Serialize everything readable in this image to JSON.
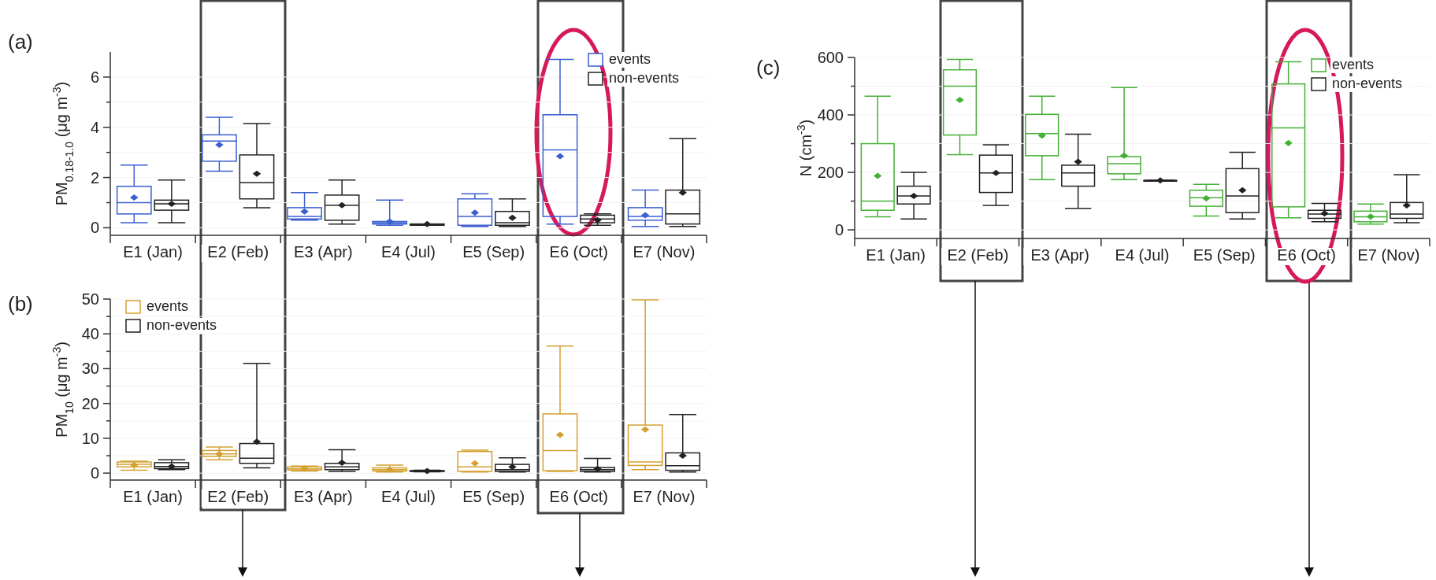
{
  "chart_data": [
    {
      "type": "box",
      "title": "(a)",
      "ylabel": "PM$_{0.18-1.0}$ (μg m$^{-3}$)",
      "categories": [
        "E1 (Jan)",
        "E2 (Feb)",
        "E3 (Apr)",
        "E4 (Jul)",
        "E5 (Sep)",
        "E6 (Oct)",
        "E7 (Nov)"
      ],
      "ylim": [
        -0.3,
        7
      ],
      "yticks": [
        0,
        {
          "value": 1,
          "label": null
        },
        2,
        {
          "value": 3,
          "label": null
        },
        4,
        {
          "value": 5,
          "label": null
        },
        6
      ],
      "grid": "y",
      "legend": "top right",
      "marker": "diamond",
      "series": [
        {
          "name": "events",
          "color": "#3a5fd0",
          "boxes": [
            {
              "low": 0.2,
              "q1": 0.55,
              "median": 1.0,
              "q3": 1.65,
              "high": 2.5,
              "mean": 1.2
            },
            {
              "low": 2.25,
              "q1": 2.65,
              "median": 3.45,
              "q3": 3.7,
              "high": 4.4,
              "mean": 3.3
            },
            {
              "low": 0.3,
              "q1": 0.35,
              "median": 0.45,
              "q3": 0.8,
              "high": 1.4,
              "mean": 0.65
            },
            {
              "low": 0.1,
              "q1": 0.15,
              "median": 0.2,
              "q3": 0.25,
              "high": 1.1,
              "mean": 0.25
            },
            {
              "low": 0.05,
              "q1": 0.1,
              "median": 0.45,
              "q3": 1.15,
              "high": 1.35,
              "mean": 0.6
            },
            {
              "low": 0.15,
              "q1": 0.45,
              "median": 3.1,
              "q3": 4.5,
              "high": 6.7,
              "mean": 2.85
            },
            {
              "low": 0.05,
              "q1": 0.3,
              "median": 0.45,
              "q3": 0.8,
              "high": 1.5,
              "mean": 0.5
            }
          ]
        },
        {
          "name": "non-events",
          "color": "#222222",
          "boxes": [
            {
              "low": 0.2,
              "q1": 0.7,
              "median": 0.95,
              "q3": 1.1,
              "high": 1.9,
              "mean": 0.95
            },
            {
              "low": 0.8,
              "q1": 1.15,
              "median": 1.8,
              "q3": 2.9,
              "high": 4.15,
              "mean": 2.15
            },
            {
              "low": 0.15,
              "q1": 0.3,
              "median": 0.9,
              "q3": 1.3,
              "high": 1.9,
              "mean": 0.9
            },
            {
              "low": 0.1,
              "q1": 0.1,
              "median": 0.15,
              "q3": 0.15,
              "high": 0.15,
              "mean": 0.15
            },
            {
              "low": 0.05,
              "q1": 0.1,
              "median": 0.2,
              "q3": 0.65,
              "high": 1.15,
              "mean": 0.4
            },
            {
              "low": 0.1,
              "q1": 0.2,
              "median": 0.35,
              "q3": 0.5,
              "high": 0.55,
              "mean": 0.3
            },
            {
              "low": 0.05,
              "q1": 0.15,
              "median": 0.55,
              "q3": 1.5,
              "high": 3.55,
              "mean": 1.4
            }
          ]
        }
      ]
    },
    {
      "type": "box",
      "title": "(b)",
      "ylabel": "PM$_{10}$ (μg m$^{-3}$)",
      "categories": [
        "E1 (Jan)",
        "E2 (Feb)",
        "E3 (Apr)",
        "E4 (Jul)",
        "E5 (Sep)",
        "E6 (Oct)",
        "E7 (Nov)"
      ],
      "ylim": [
        -2,
        50
      ],
      "yticks": [
        0,
        {
          "value": 5,
          "label": null
        },
        10,
        {
          "value": 15,
          "label": null
        },
        20,
        {
          "value": 25,
          "label": null
        },
        30,
        {
          "value": 35,
          "label": null
        },
        40,
        {
          "value": 45,
          "label": null
        },
        50
      ],
      "grid": "y",
      "legend": "top left",
      "marker": "diamond",
      "series": [
        {
          "name": "events",
          "color": "#d4a030",
          "boxes": [
            {
              "low": 0.8,
              "q1": 1.8,
              "median": 2.5,
              "q3": 3.2,
              "high": 3.4,
              "mean": 2.3
            },
            {
              "low": 3.8,
              "q1": 4.8,
              "median": 5.5,
              "q3": 6.5,
              "high": 7.5,
              "mean": 5.5
            },
            {
              "low": 0.6,
              "q1": 0.9,
              "median": 1.2,
              "q3": 1.8,
              "high": 2.0,
              "mean": 1.3
            },
            {
              "low": 0.3,
              "q1": 0.6,
              "median": 1.0,
              "q3": 1.5,
              "high": 2.3,
              "mean": 1.0
            },
            {
              "low": 0.3,
              "q1": 0.5,
              "median": 1.8,
              "q3": 6.2,
              "high": 6.6,
              "mean": 2.8
            },
            {
              "low": 0.5,
              "q1": 0.7,
              "median": 6.5,
              "q3": 17,
              "high": 36.5,
              "mean": 11
            },
            {
              "low": 1.0,
              "q1": 2.2,
              "median": 3.2,
              "q3": 13.8,
              "high": 49.8,
              "mean": 12.5
            }
          ]
        },
        {
          "name": "non-events",
          "color": "#222222",
          "boxes": [
            {
              "low": 1.0,
              "q1": 1.3,
              "median": 1.9,
              "q3": 3.0,
              "high": 3.8,
              "mean": 1.9
            },
            {
              "low": 1.5,
              "q1": 2.8,
              "median": 4.3,
              "q3": 8.5,
              "high": 31.5,
              "mean": 9.0
            },
            {
              "low": 0.5,
              "q1": 1.0,
              "median": 1.8,
              "q3": 2.8,
              "high": 6.7,
              "mean": 3.0
            },
            {
              "low": 0.4,
              "q1": 0.5,
              "median": 0.6,
              "q3": 0.7,
              "high": 0.8,
              "mean": 0.6
            },
            {
              "low": 0.3,
              "q1": 0.5,
              "median": 1.0,
              "q3": 2.5,
              "high": 4.4,
              "mean": 1.8
            },
            {
              "low": 0.3,
              "q1": 0.5,
              "median": 1.0,
              "q3": 1.6,
              "high": 4.2,
              "mean": 1.2
            },
            {
              "low": 0.3,
              "q1": 0.8,
              "median": 2.1,
              "q3": 5.8,
              "high": 16.8,
              "mean": 5.0
            }
          ]
        }
      ]
    },
    {
      "type": "box",
      "title": "(c)",
      "ylabel": "N (cm$^{-3}$)",
      "categories": [
        "E1 (Jan)",
        "E2 (Feb)",
        "E3 (Apr)",
        "E4 (Jul)",
        "E5 (Sep)",
        "E6 (Oct)",
        "E7 (Nov)"
      ],
      "ylim": [
        -30,
        600
      ],
      "yticks": [
        0,
        {
          "value": 100,
          "label": null
        },
        200,
        {
          "value": 300,
          "label": null
        },
        400,
        {
          "value": 500,
          "label": null
        },
        600
      ],
      "grid": "y",
      "legend": "top right",
      "marker": "diamond",
      "series": [
        {
          "name": "events",
          "color": "#44b034",
          "boxes": [
            {
              "low": 45,
              "q1": 68,
              "median": 100,
              "q3": 300,
              "high": 465,
              "mean": 188
            },
            {
              "low": 262,
              "q1": 330,
              "median": 500,
              "q3": 557,
              "high": 593,
              "mean": 452
            },
            {
              "low": 175,
              "q1": 258,
              "median": 335,
              "q3": 402,
              "high": 465,
              "mean": 328
            },
            {
              "low": 175,
              "q1": 195,
              "median": 230,
              "q3": 255,
              "high": 495,
              "mean": 258
            },
            {
              "low": 48,
              "q1": 82,
              "median": 112,
              "q3": 138,
              "high": 158,
              "mean": 110
            },
            {
              "low": 42,
              "q1": 80,
              "median": 355,
              "q3": 508,
              "high": 585,
              "mean": 302
            },
            {
              "low": 20,
              "q1": 28,
              "median": 45,
              "q3": 65,
              "high": 90,
              "mean": 46
            }
          ]
        },
        {
          "name": "non-events",
          "color": "#222222",
          "boxes": [
            {
              "low": 38,
              "q1": 90,
              "median": 118,
              "q3": 152,
              "high": 200,
              "mean": 118
            },
            {
              "low": 85,
              "q1": 130,
              "median": 198,
              "q3": 260,
              "high": 296,
              "mean": 198
            },
            {
              "low": 75,
              "q1": 152,
              "median": 198,
              "q3": 225,
              "high": 333,
              "mean": 237
            },
            {
              "low": 172,
              "q1": 172,
              "median": 172,
              "q3": 172,
              "high": 172,
              "mean": 172
            },
            {
              "low": 38,
              "q1": 60,
              "median": 118,
              "q3": 213,
              "high": 270,
              "mean": 138
            },
            {
              "low": 28,
              "q1": 40,
              "median": 55,
              "q3": 68,
              "high": 92,
              "mean": 57
            },
            {
              "low": 25,
              "q1": 40,
              "median": 55,
              "q3": 95,
              "high": 192,
              "mean": 85
            }
          ]
        }
      ]
    }
  ]
}
